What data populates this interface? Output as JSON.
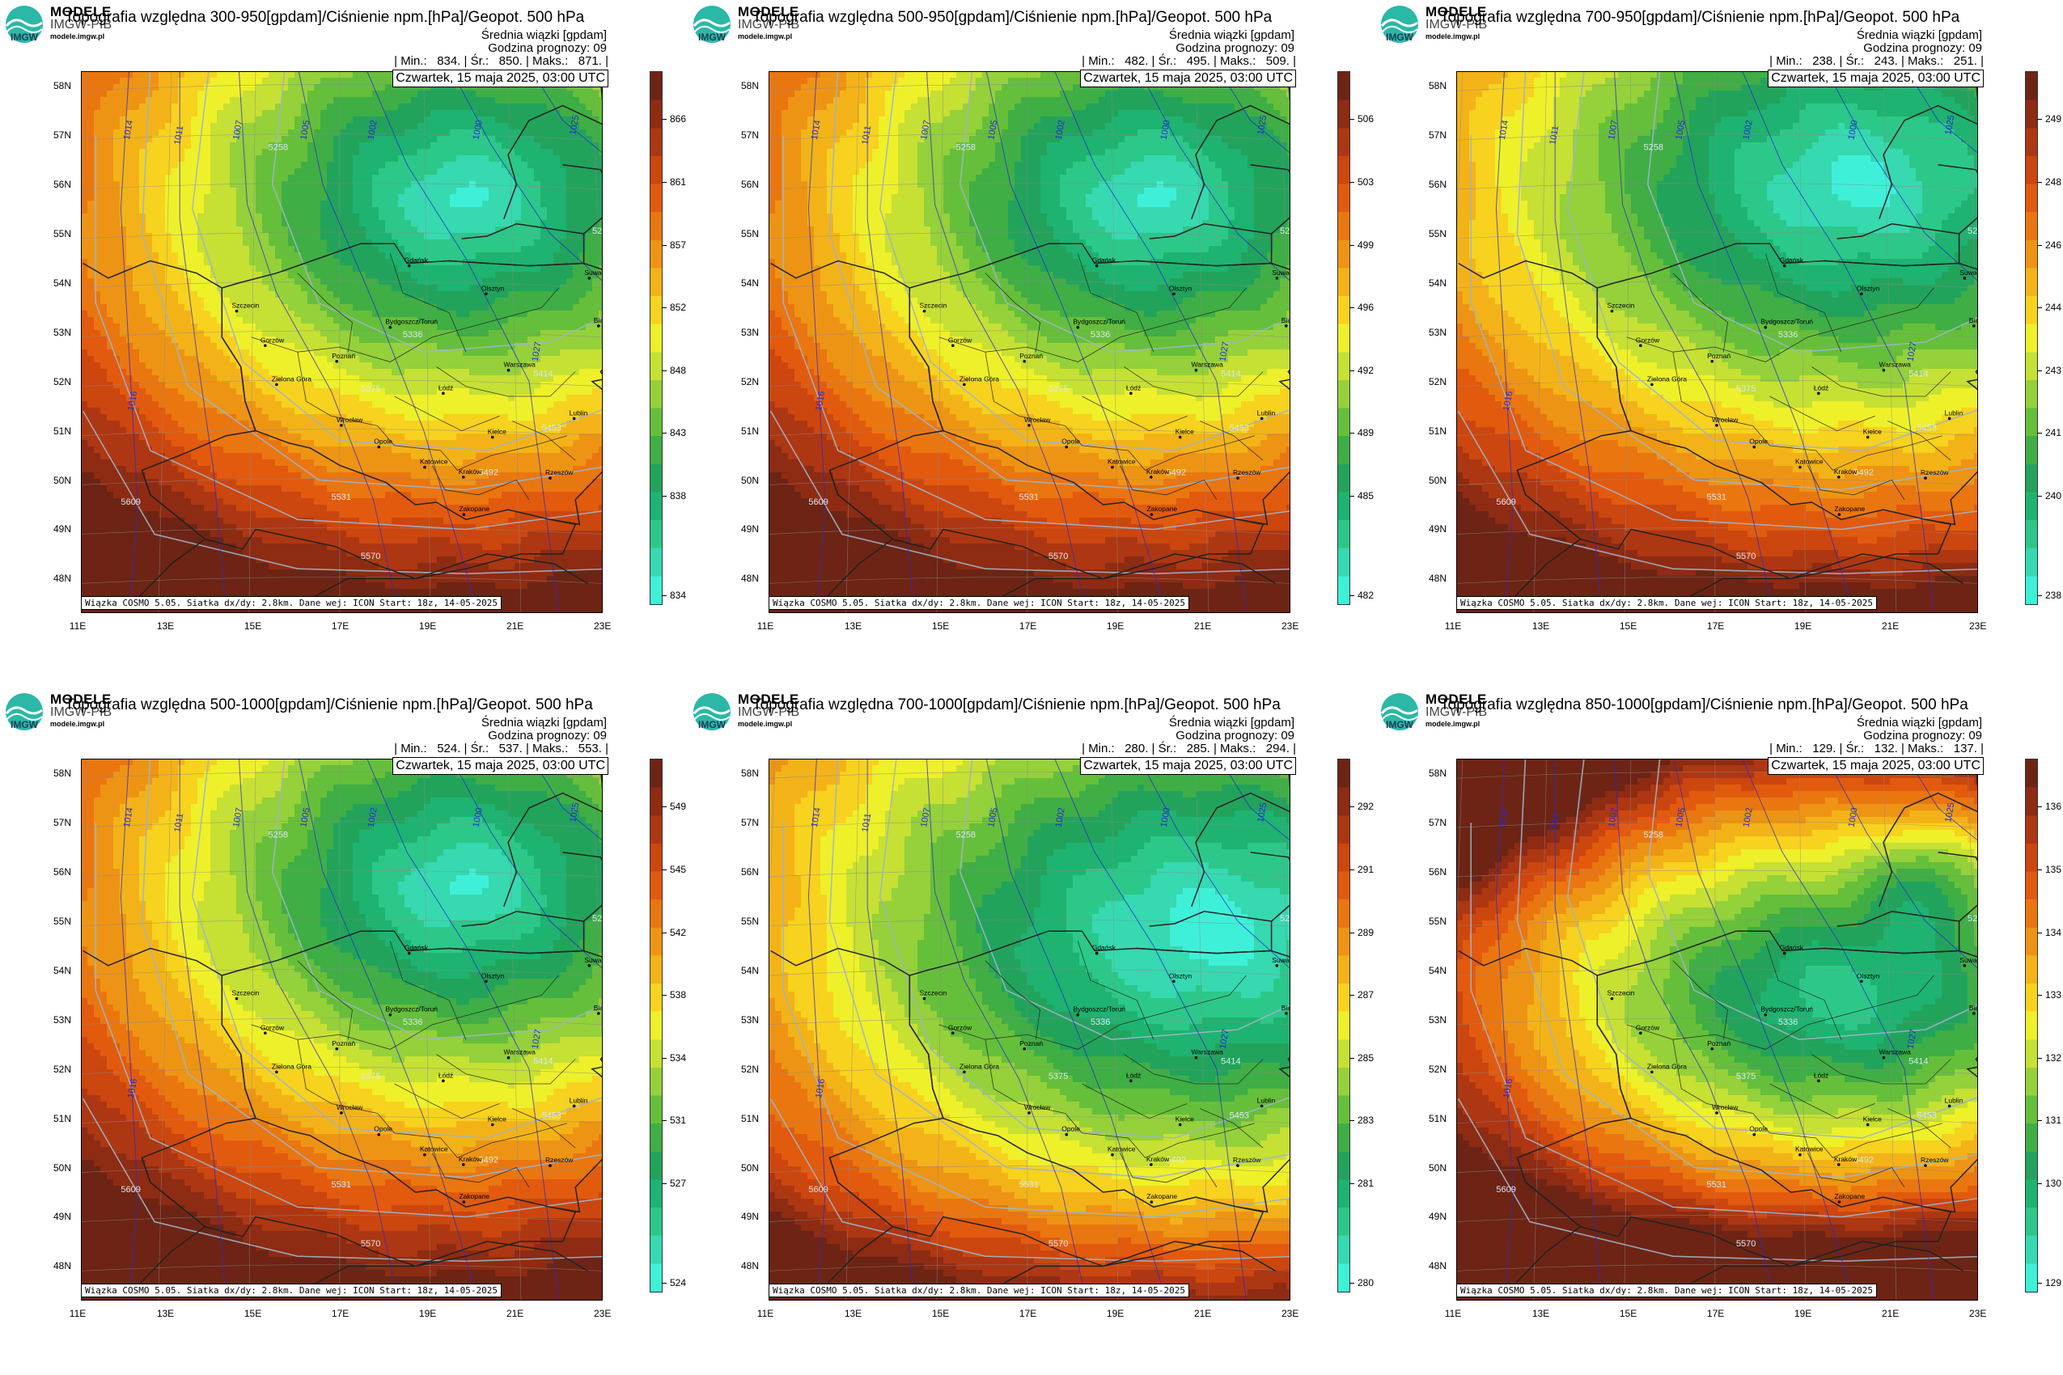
{
  "header": {
    "brand": "MODELE",
    "brand_sub": "IMGW-PIB",
    "brand_url": "modele.imgw.pl",
    "logo_letters": "IMGW"
  },
  "common": {
    "mean_label": "Średnia wiązki [gpdam]",
    "forecast_hour": "Godzina prognozy: 09",
    "datetime": "Czwartek, 15 maja 2025, 03:00 UTC",
    "footer": "Wiązka COSMO 5.05. Siatka dx/dy: 2.8km. Dane wej: ICON Start: 18z, 14-05-2025",
    "lat_labels": [
      "58N",
      "57N",
      "56N",
      "55N",
      "54N",
      "53N",
      "52N",
      "51N",
      "50N",
      "49N",
      "48N"
    ],
    "lon_labels": [
      "11E",
      "13E",
      "15E",
      "17E",
      "19E",
      "21E",
      "23E"
    ],
    "cities": [
      {
        "name": "Gdańsk",
        "lon": 18.65,
        "lat": 54.35
      },
      {
        "name": "Suwałki",
        "lon": 22.93,
        "lat": 54.1
      },
      {
        "name": "Olsztyn",
        "lon": 20.48,
        "lat": 53.78
      },
      {
        "name": "Białystok",
        "lon": 23.15,
        "lat": 53.13
      },
      {
        "name": "Szczecin",
        "lon": 14.55,
        "lat": 53.43
      },
      {
        "name": "Bydgoszcz/Toruń",
        "lon": 18.2,
        "lat": 53.1
      },
      {
        "name": "Gorzów",
        "lon": 15.23,
        "lat": 52.73
      },
      {
        "name": "Poznań",
        "lon": 16.93,
        "lat": 52.41
      },
      {
        "name": "Warszawa",
        "lon": 21.01,
        "lat": 52.23
      },
      {
        "name": "Zielona Góra",
        "lon": 15.5,
        "lat": 51.94
      },
      {
        "name": "Łódź",
        "lon": 19.46,
        "lat": 51.76
      },
      {
        "name": "Lublin",
        "lon": 22.57,
        "lat": 51.25
      },
      {
        "name": "Wrocław",
        "lon": 17.04,
        "lat": 51.11
      },
      {
        "name": "Kielce",
        "lon": 20.63,
        "lat": 50.87
      },
      {
        "name": "Opole",
        "lon": 17.93,
        "lat": 50.67
      },
      {
        "name": "Rzeszów",
        "lon": 22.0,
        "lat": 50.04
      },
      {
        "name": "Katowice",
        "lon": 19.02,
        "lat": 50.26
      },
      {
        "name": "Kraków",
        "lon": 19.94,
        "lat": 50.06
      },
      {
        "name": "Zakopane",
        "lon": 19.95,
        "lat": 49.3
      }
    ],
    "isobar_labels": [
      "1014",
      "1011",
      "1007",
      "1005",
      "1002",
      "1000",
      "1025",
      "1027",
      "1016"
    ],
    "geopot_labels": [
      "5336",
      "5375",
      "5414",
      "5453",
      "5492",
      "5531",
      "5570",
      "5609",
      "5258",
      "5297"
    ]
  },
  "panels": [
    {
      "title": "Topografia względna 300-950[gpdam]/Ciśnienie npm.[hPa]/Geopot. 500 hPa",
      "min": "834.",
      "mean": "850.",
      "max": "871.",
      "colorbar_ticks": [
        "866",
        "861",
        "857",
        "852",
        "848",
        "843",
        "838",
        "834"
      ],
      "pattern": "A"
    },
    {
      "title": "Topografia względna 500-950[gpdam]/Ciśnienie npm.[hPa]/Geopot. 500 hPa",
      "min": "482.",
      "mean": "495.",
      "max": "509.",
      "colorbar_ticks": [
        "506",
        "503",
        "499",
        "496",
        "492",
        "489",
        "485",
        "482"
      ],
      "pattern": "A"
    },
    {
      "title": "Topografia względna 700-950[gpdam]/Ciśnienie npm.[hPa]/Geopot. 500 hPa",
      "min": "238.",
      "mean": "243.",
      "max": "251.",
      "colorbar_ticks": [
        "249",
        "248",
        "246",
        "244",
        "243",
        "241",
        "240",
        "238"
      ],
      "pattern": "B"
    },
    {
      "title": "Topografia względna 500-1000[gpdam]/Ciśnienie npm.[hPa]/Geopot. 500 hPa",
      "min": "524.",
      "mean": "537.",
      "max": "553.",
      "colorbar_ticks": [
        "549",
        "545",
        "542",
        "538",
        "534",
        "531",
        "527",
        "524"
      ],
      "pattern": "A"
    },
    {
      "title": "Topografia względna 700-1000[gpdam]/Ciśnienie npm.[hPa]/Geopot. 500 hPa",
      "min": "280.",
      "mean": "285.",
      "max": "294.",
      "colorbar_ticks": [
        "292",
        "291",
        "289",
        "287",
        "285",
        "283",
        "281",
        "280"
      ],
      "pattern": "C"
    },
    {
      "title": "Topografia względna 850-1000[gpdam]/Ciśnienie npm.[hPa]/Geopot. 500 hPa",
      "min": "129.",
      "mean": "132.",
      "max": "137.",
      "colorbar_ticks": [
        "136",
        "135",
        "134",
        "133",
        "132",
        "131",
        "130",
        "129"
      ],
      "pattern": "D"
    }
  ],
  "colors": {
    "scale": [
      "#3ff0d8",
      "#36d9b0",
      "#2cc889",
      "#1eb370",
      "#22a35c",
      "#3fae45",
      "#66bf3a",
      "#94d13a",
      "#c6e034",
      "#eef02a",
      "#f7d21e",
      "#f3b318",
      "#ee9414",
      "#ea7610",
      "#e25a0e",
      "#cc460f",
      "#ad3712",
      "#8d2b13",
      "#6d2414"
    ],
    "border": "#222222",
    "isobar": "#2a2ad0",
    "geopot": "#9fb4c8"
  }
}
